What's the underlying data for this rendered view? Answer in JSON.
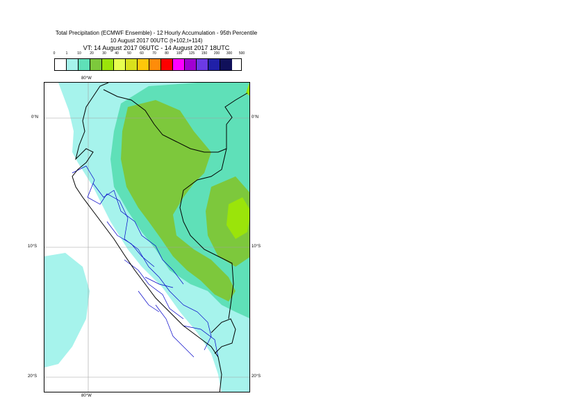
{
  "title": {
    "line1": "Total Precipitation (ECMWF Ensemble) - 12 Hourly Accumulation - 95th Percentile",
    "line2": "10 August 2017 00UTC (t+102,t+114)",
    "line3": "VT: 14 August 2017 06UTC - 14 August 2017 18UTC"
  },
  "legend": {
    "labels": [
      "0",
      "1",
      "10",
      "20",
      "30",
      "40",
      "50",
      "60",
      "70",
      "80",
      "100",
      "125",
      "150",
      "200",
      "300",
      "500"
    ],
    "colors": [
      "#ffffff",
      "#a6f3ec",
      "#5fe0b8",
      "#7dc83c",
      "#9be40a",
      "#e8fe50",
      "#d9e01c",
      "#fec70a",
      "#fe8c0a",
      "#fe0000",
      "#fe00fe",
      "#a000d2",
      "#6c3ae6",
      "#2020a8",
      "#10105a"
    ]
  },
  "map": {
    "lon_label_top": "80°W",
    "lon_label_bottom": "80°W",
    "lat_labels_left": [
      "0°N",
      "10°S",
      "20°S"
    ],
    "lat_labels_right": [
      "0°N",
      "10°S",
      "20°S"
    ],
    "colors": {
      "light_cyan": "#a6f3ec",
      "teal": "#5fe0b8",
      "green": "#7dc83c",
      "lime": "#9be40a",
      "coast": "#000000",
      "borders": "#0000c8",
      "grid": "#a0a0a0"
    }
  }
}
